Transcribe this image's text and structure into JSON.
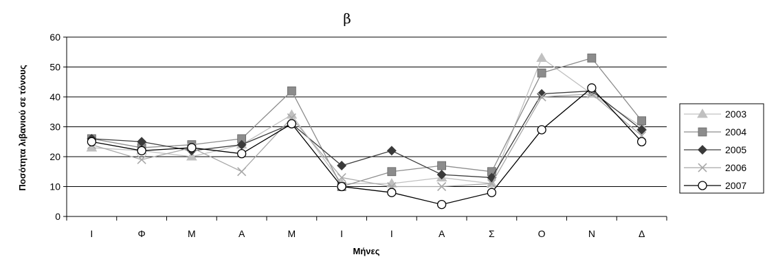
{
  "chart_data": {
    "type": "line",
    "title": "β",
    "xlabel": "Μήνες",
    "ylabel": "Ποσότητα λιβανιού σε τόνους",
    "categories": [
      "Ι",
      "Φ",
      "Μ",
      "Α",
      "Μ",
      "Ι",
      "Ι",
      "Α",
      "Σ",
      "Ο",
      "Ν",
      "Δ"
    ],
    "ylim": [
      0,
      60
    ],
    "yticks": [
      0,
      10,
      20,
      30,
      40,
      50,
      60
    ],
    "grid": true,
    "legend": "right",
    "series": [
      {
        "name": "2003",
        "color": "#c0c0c0",
        "marker": "triangle",
        "values": [
          23,
          22,
          20,
          24,
          34,
          11,
          11,
          13,
          11,
          53,
          41,
          30
        ]
      },
      {
        "name": "2004",
        "color": "#8c8c8c",
        "marker": "square",
        "values": [
          26,
          23,
          24,
          26,
          42,
          10,
          15,
          17,
          15,
          48,
          53,
          32
        ]
      },
      {
        "name": "2005",
        "color": "#3a3a3a",
        "marker": "diamond",
        "values": [
          26,
          25,
          22,
          24,
          31,
          17,
          22,
          14,
          13,
          41,
          42,
          29
        ]
      },
      {
        "name": "2006",
        "color": "#a8a8a8",
        "marker": "x",
        "values": [
          24,
          19,
          23,
          15,
          33,
          13,
          10,
          10,
          11,
          40,
          41,
          27
        ]
      },
      {
        "name": "2007",
        "color": "#000000",
        "marker": "circle",
        "values": [
          25,
          22,
          23,
          21,
          31,
          10,
          8,
          4,
          8,
          29,
          43,
          25
        ]
      }
    ]
  }
}
